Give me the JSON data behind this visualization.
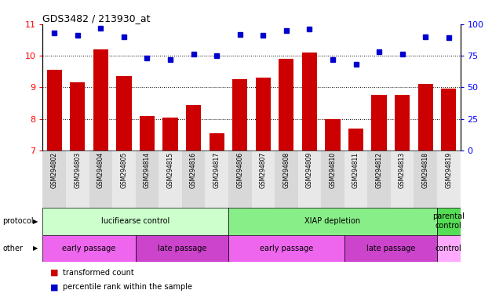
{
  "title": "GDS3482 / 213930_at",
  "samples": [
    "GSM294802",
    "GSM294803",
    "GSM294804",
    "GSM294805",
    "GSM294814",
    "GSM294815",
    "GSM294816",
    "GSM294817",
    "GSM294806",
    "GSM294807",
    "GSM294808",
    "GSM294809",
    "GSM294810",
    "GSM294811",
    "GSM294812",
    "GSM294813",
    "GSM294818",
    "GSM294819"
  ],
  "bar_values": [
    9.55,
    9.15,
    10.2,
    9.35,
    8.1,
    8.05,
    8.45,
    7.55,
    9.25,
    9.3,
    9.9,
    10.1,
    8.0,
    7.7,
    8.75,
    8.75,
    9.1,
    8.95
  ],
  "percentile_values": [
    93,
    91,
    97,
    90,
    73,
    72,
    76,
    75,
    92,
    91,
    95,
    96,
    72,
    68,
    78,
    76,
    90,
    89
  ],
  "bar_color": "#cc0000",
  "dot_color": "#0000cc",
  "ylim_left": [
    7,
    11
  ],
  "ylim_right": [
    0,
    100
  ],
  "yticks_left": [
    7,
    8,
    9,
    10,
    11
  ],
  "yticks_right": [
    0,
    25,
    50,
    75,
    100
  ],
  "protocol_groups": [
    {
      "label": "lucifiearse control",
      "start": 0,
      "end": 8,
      "color": "#ccffcc"
    },
    {
      "label": "XIAP depletion",
      "start": 8,
      "end": 17,
      "color": "#88ee88"
    },
    {
      "label": "parental\ncontrol",
      "start": 17,
      "end": 18,
      "color": "#55dd55"
    }
  ],
  "other_groups": [
    {
      "label": "early passage",
      "start": 0,
      "end": 4,
      "color": "#ee66ee"
    },
    {
      "label": "late passage",
      "start": 4,
      "end": 8,
      "color": "#cc44cc"
    },
    {
      "label": "early passage",
      "start": 8,
      "end": 13,
      "color": "#ee66ee"
    },
    {
      "label": "late passage",
      "start": 13,
      "end": 17,
      "color": "#cc44cc"
    },
    {
      "label": "control",
      "start": 17,
      "end": 18,
      "color": "#ffaaff"
    }
  ],
  "tick_bg_even": "#d8d8d8",
  "tick_bg_odd": "#e8e8e8"
}
